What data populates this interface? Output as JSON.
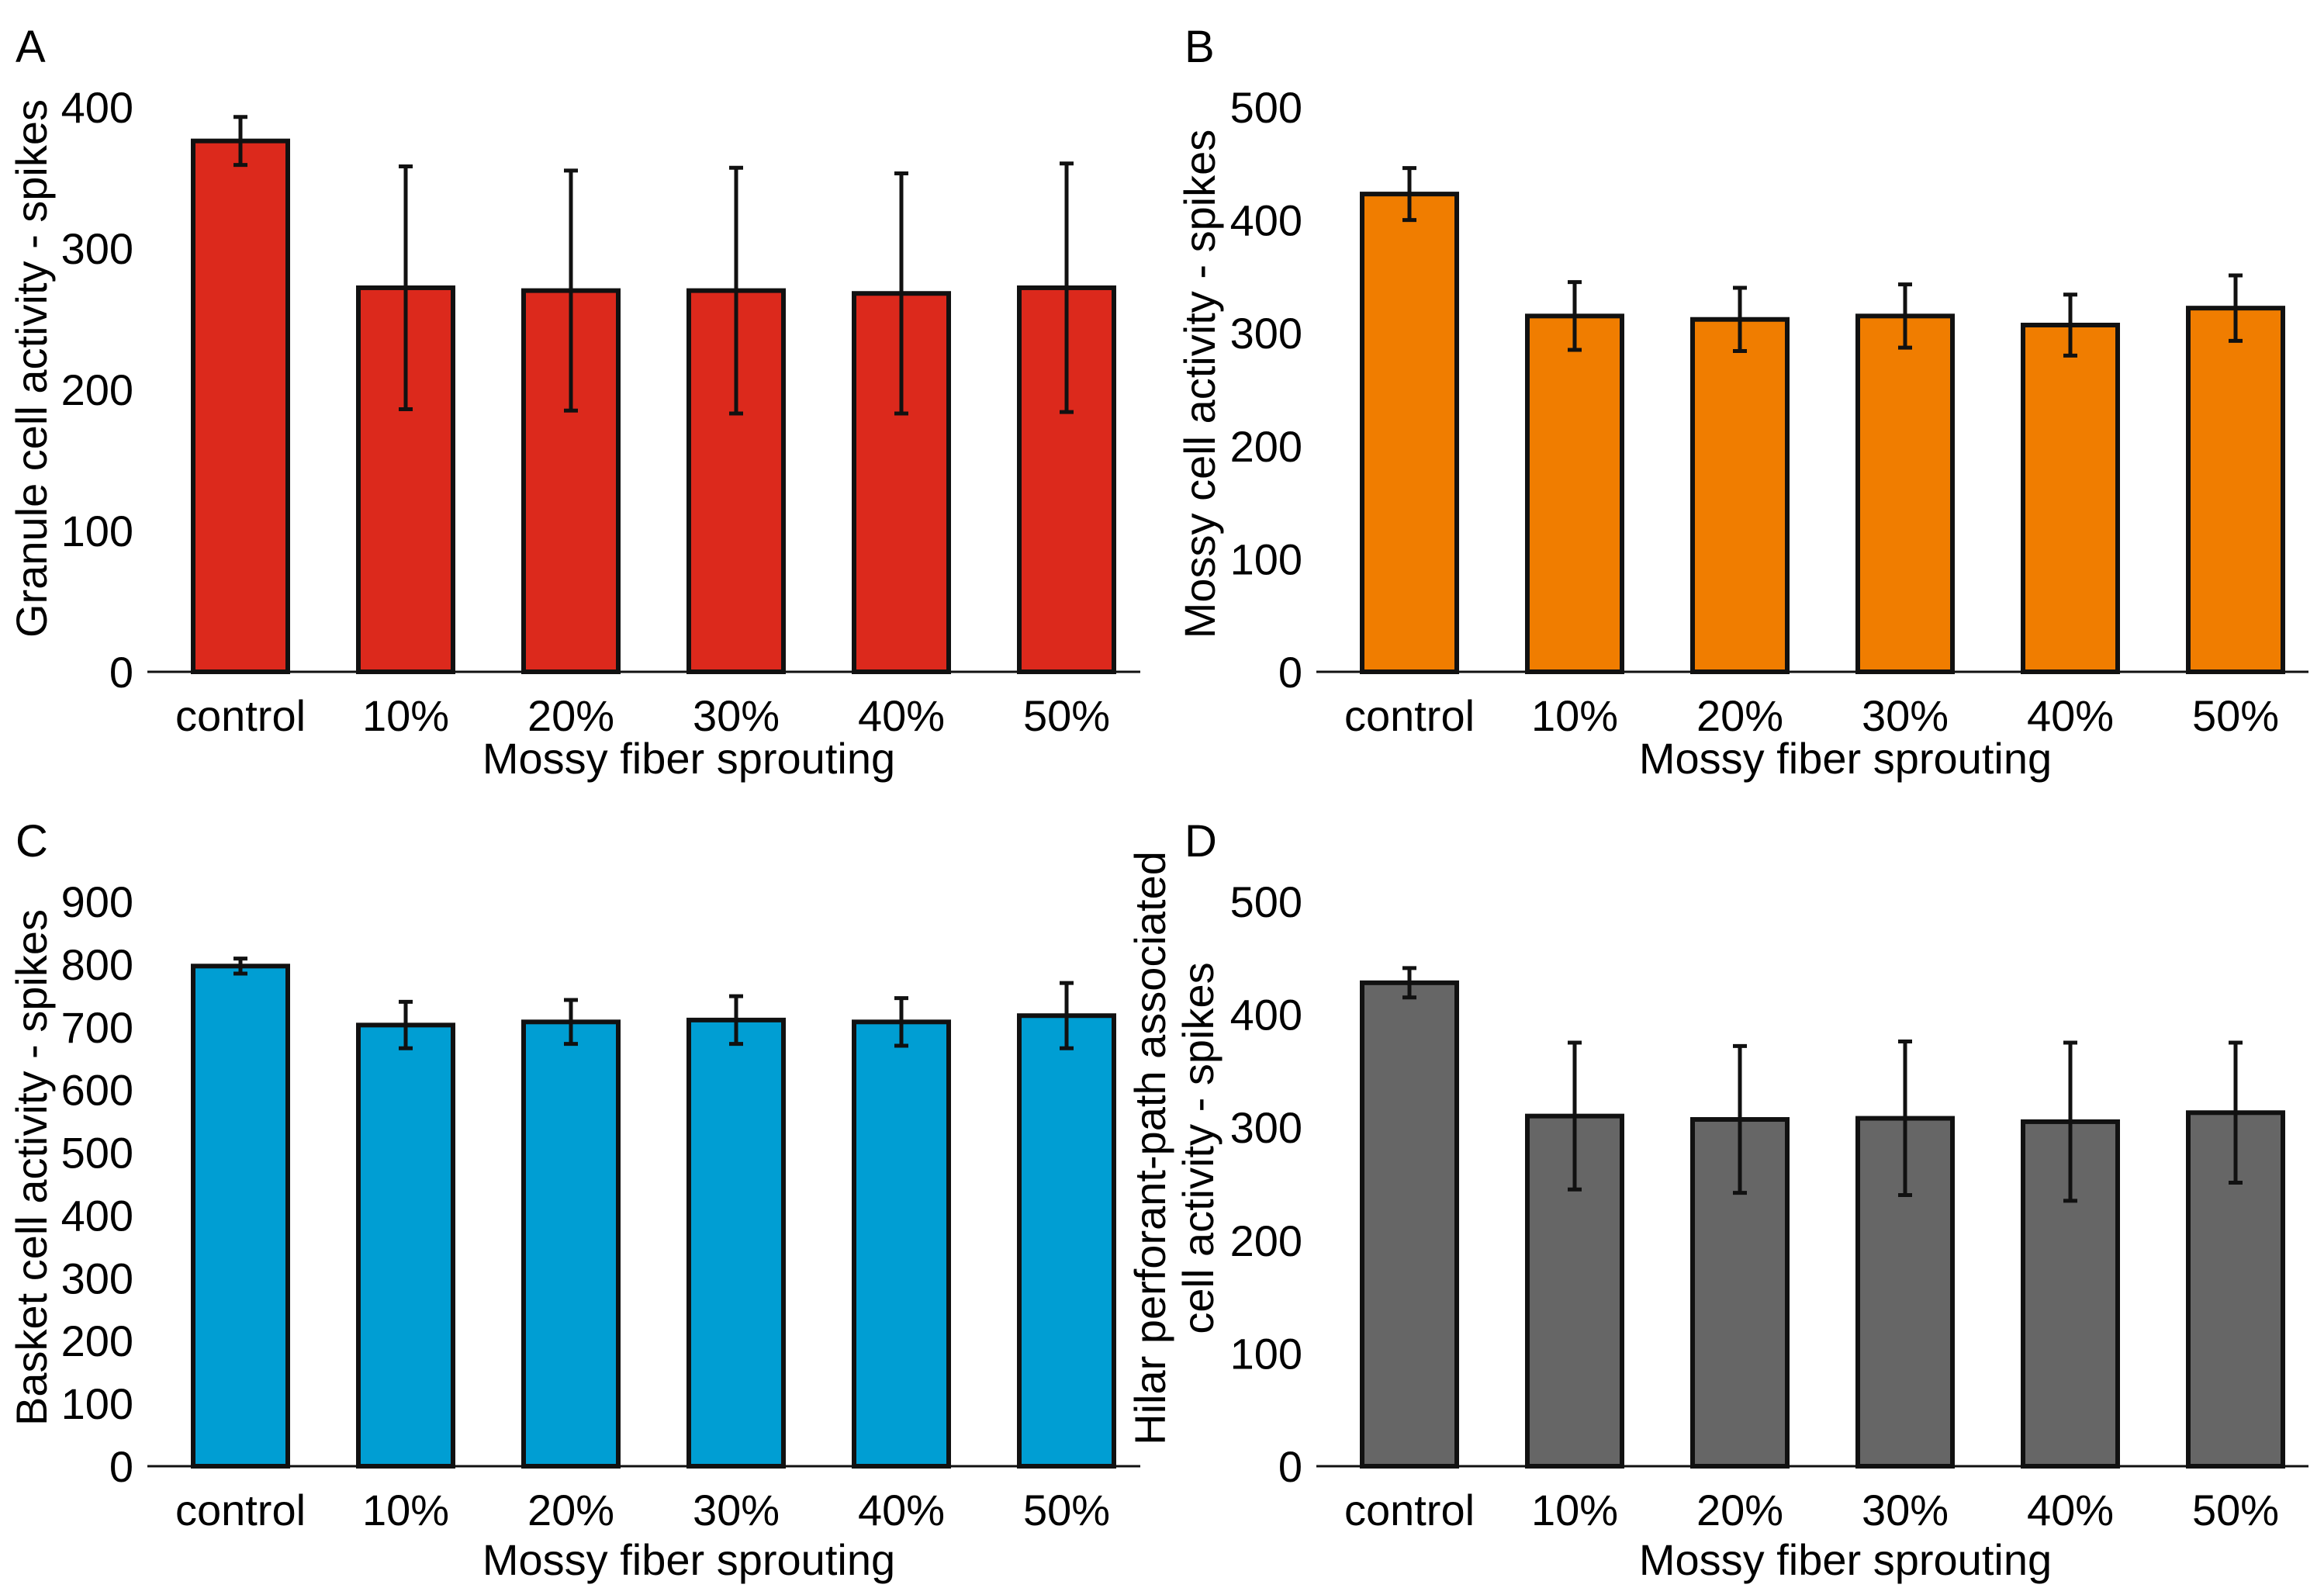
{
  "figure": {
    "categories": [
      "control",
      "10%",
      "20%",
      "30%",
      "40%",
      "50%"
    ]
  },
  "chart_data": [
    {
      "panel": "A",
      "type": "bar",
      "categories": [
        "control",
        "10%",
        "20%",
        "30%",
        "40%",
        "50%"
      ],
      "values": [
        376,
        272,
        270,
        270,
        268,
        272
      ],
      "errors": [
        17,
        86,
        85,
        87,
        85,
        88
      ],
      "ylim": [
        0,
        400
      ],
      "yticks": [
        0,
        100,
        200,
        300,
        400
      ],
      "xlabel": "Mossy fiber sprouting",
      "ylabel": [
        "Granule cell activity - spikes"
      ],
      "color": "#dc291c"
    },
    {
      "panel": "B",
      "type": "bar",
      "categories": [
        "control",
        "10%",
        "20%",
        "30%",
        "40%",
        "50%"
      ],
      "values": [
        423,
        315,
        312,
        315,
        307,
        322
      ],
      "errors": [
        23,
        30,
        28,
        28,
        27,
        29
      ],
      "ylim": [
        0,
        500
      ],
      "yticks": [
        0,
        100,
        200,
        300,
        400,
        500
      ],
      "xlabel": "Mossy fiber sprouting",
      "ylabel": [
        "Mossy cell activity - spikes"
      ],
      "color": "#f07d00"
    },
    {
      "panel": "C",
      "type": "bar",
      "categories": [
        "control",
        "10%",
        "20%",
        "30%",
        "40%",
        "50%"
      ],
      "values": [
        797,
        703,
        708,
        711,
        708,
        718
      ],
      "errors": [
        12,
        37,
        35,
        38,
        38,
        52
      ],
      "ylim": [
        0,
        900
      ],
      "yticks": [
        0,
        100,
        200,
        300,
        400,
        500,
        600,
        700,
        800,
        900
      ],
      "xlabel": "Mossy fiber sprouting",
      "ylabel": [
        "Basket cell activity - spikes"
      ],
      "color": "#009ed3"
    },
    {
      "panel": "D",
      "type": "bar",
      "categories": [
        "control",
        "10%",
        "20%",
        "30%",
        "40%",
        "50%"
      ],
      "values": [
        428,
        310,
        307,
        308,
        305,
        313
      ],
      "errors": [
        13,
        65,
        65,
        68,
        70,
        62
      ],
      "ylim": [
        0,
        500
      ],
      "yticks": [
        0,
        100,
        200,
        300,
        400,
        500
      ],
      "xlabel": "Mossy fiber sprouting",
      "ylabel": [
        "Hilar perforant-path associated",
        "cell activity - spikes"
      ],
      "color": "#666666"
    }
  ]
}
